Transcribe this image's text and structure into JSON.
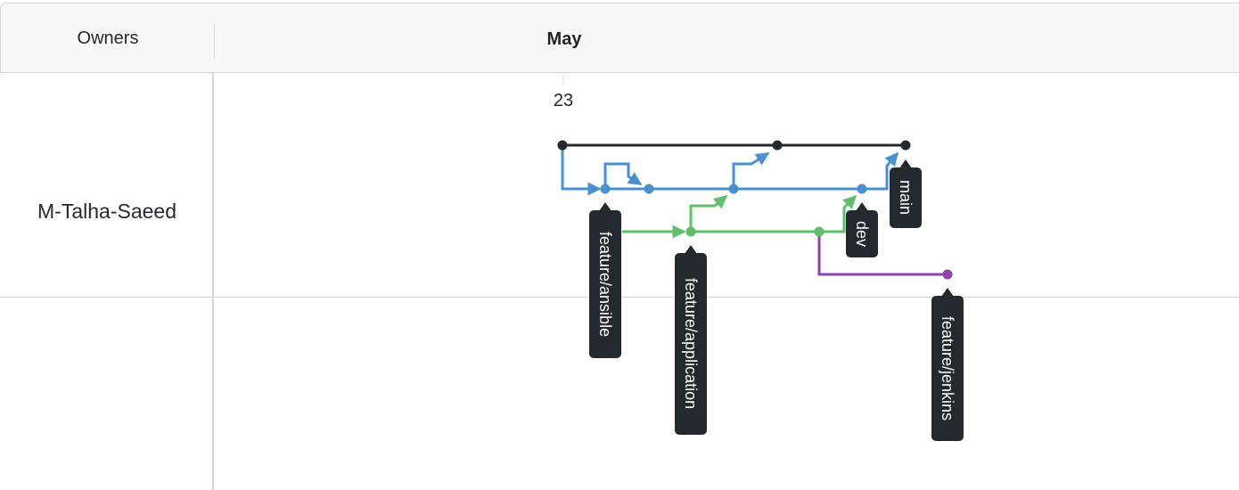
{
  "header": {
    "owners_label": "Owners",
    "month_label": "May"
  },
  "timeline": {
    "day_label": "23"
  },
  "owner": {
    "name": "M-Talha-Saeed"
  },
  "branches": [
    {
      "name": "main",
      "color": "#24292f"
    },
    {
      "name": "dev",
      "color": "#4a90d0"
    },
    {
      "name": "feature/ansible",
      "color": "#4a90d0"
    },
    {
      "name": "feature/application",
      "color": "#5ec06a"
    },
    {
      "name": "feature/jenkins",
      "color": "#8e44ad"
    }
  ],
  "colors": {
    "black_lane": "#24292f",
    "blue_lane": "#4a90d0",
    "green_lane": "#5ec06a",
    "purple_lane": "#8e44ad",
    "label_bg": "#24292f",
    "label_text": "#ffffff"
  }
}
